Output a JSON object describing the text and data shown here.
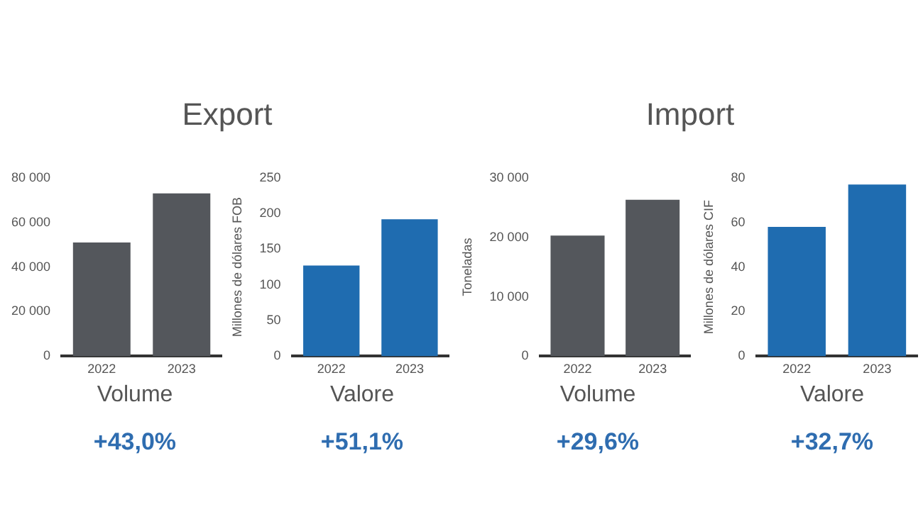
{
  "chart_data": [
    {
      "type": "bar",
      "title": "Export",
      "categories": [
        "2022",
        "2023"
      ],
      "values": [
        51000,
        73000
      ],
      "color": "#54575c",
      "ylim": [
        0,
        80000
      ],
      "yticks": [
        {
          "value": 0,
          "label": "0"
        },
        {
          "value": 20000,
          "label": "20 000"
        },
        {
          "value": 40000,
          "label": "40 000"
        },
        {
          "value": 60000,
          "label": "60 000"
        },
        {
          "value": 80000,
          "label": "80 000"
        }
      ],
      "xlabel": "Volume",
      "annotations": [
        "+43,0%"
      ]
    },
    {
      "type": "bar",
      "categories": [
        "2022",
        "2023"
      ],
      "values": [
        127,
        192
      ],
      "color": "#1f6cb0",
      "ylim": [
        0,
        250
      ],
      "yticks": [
        0,
        50,
        100,
        150,
        200,
        250
      ],
      "ylabel": "Millones de dólares FOB",
      "xlabel": "Valore",
      "annotations": [
        "+51,1%"
      ]
    },
    {
      "type": "bar",
      "title": "Import",
      "categories": [
        "2022",
        "2023"
      ],
      "values": [
        20300,
        26300
      ],
      "color": "#54575c",
      "ylim": [
        0,
        30000
      ],
      "yticks": [
        {
          "value": 0,
          "label": "0"
        },
        {
          "value": 10000,
          "label": "10 000"
        },
        {
          "value": 20000,
          "label": "20 000"
        },
        {
          "value": 30000,
          "label": "30 000"
        }
      ],
      "ylabel": "Toneladas",
      "xlabel": "Volume",
      "annotations": [
        "+29,6%"
      ]
    },
    {
      "type": "bar",
      "categories": [
        "2022",
        "2023"
      ],
      "values": [
        58,
        77
      ],
      "color": "#1f6cb0",
      "ylim": [
        0,
        80
      ],
      "yticks": [
        0,
        20,
        40,
        60,
        80
      ],
      "ylabel": "Millones de dólares CIF",
      "xlabel": "Valore",
      "annotations": [
        "+32,7%"
      ]
    }
  ]
}
